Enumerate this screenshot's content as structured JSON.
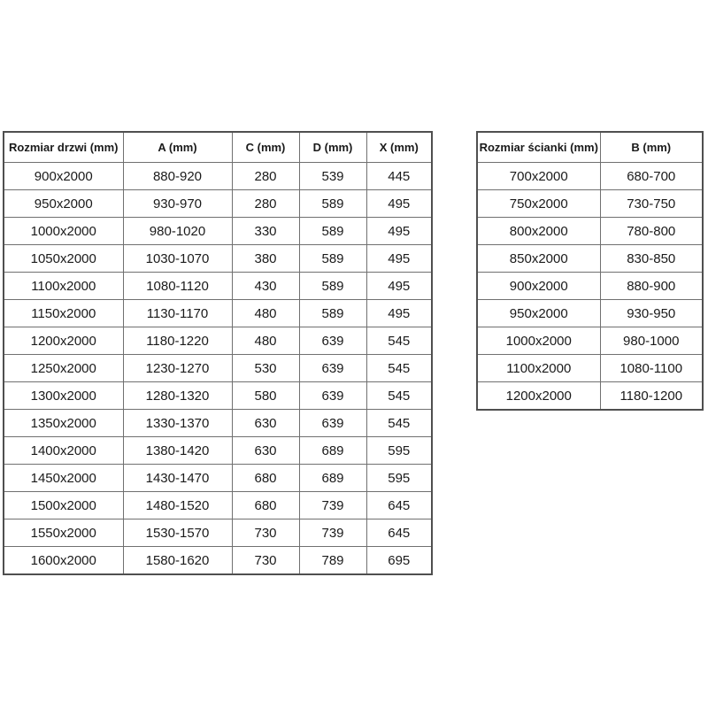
{
  "doors_table": {
    "headers": [
      "Rozmiar drzwi (mm)",
      "A (mm)",
      "C (mm)",
      "D (mm)",
      "X (mm)"
    ],
    "rows": [
      [
        "900x2000",
        "880-920",
        "280",
        "539",
        "445"
      ],
      [
        "950x2000",
        "930-970",
        "280",
        "589",
        "495"
      ],
      [
        "1000x2000",
        "980-1020",
        "330",
        "589",
        "495"
      ],
      [
        "1050x2000",
        "1030-1070",
        "380",
        "589",
        "495"
      ],
      [
        "1100x2000",
        "1080-1120",
        "430",
        "589",
        "495"
      ],
      [
        "1150x2000",
        "1130-1170",
        "480",
        "589",
        "495"
      ],
      [
        "1200x2000",
        "1180-1220",
        "480",
        "639",
        "545"
      ],
      [
        "1250x2000",
        "1230-1270",
        "530",
        "639",
        "545"
      ],
      [
        "1300x2000",
        "1280-1320",
        "580",
        "639",
        "545"
      ],
      [
        "1350x2000",
        "1330-1370",
        "630",
        "639",
        "545"
      ],
      [
        "1400x2000",
        "1380-1420",
        "630",
        "689",
        "595"
      ],
      [
        "1450x2000",
        "1430-1470",
        "680",
        "689",
        "595"
      ],
      [
        "1500x2000",
        "1480-1520",
        "680",
        "739",
        "645"
      ],
      [
        "1550x2000",
        "1530-1570",
        "730",
        "739",
        "645"
      ],
      [
        "1600x2000",
        "1580-1620",
        "730",
        "789",
        "695"
      ]
    ]
  },
  "walls_table": {
    "headers": [
      "Rozmiar ścianki (mm)",
      "B (mm)"
    ],
    "rows": [
      [
        "700x2000",
        "680-700"
      ],
      [
        "750x2000",
        "730-750"
      ],
      [
        "800x2000",
        "780-800"
      ],
      [
        "850x2000",
        "830-850"
      ],
      [
        "900x2000",
        "880-900"
      ],
      [
        "950x2000",
        "930-950"
      ],
      [
        "1000x2000",
        "980-1000"
      ],
      [
        "1100x2000",
        "1080-1100"
      ],
      [
        "1200x2000",
        "1180-1200"
      ]
    ]
  },
  "colors": {
    "background": "#ffffff",
    "border_outer": "#4f4f4f",
    "border_inner": "#707070",
    "text": "#1a1a1a"
  }
}
